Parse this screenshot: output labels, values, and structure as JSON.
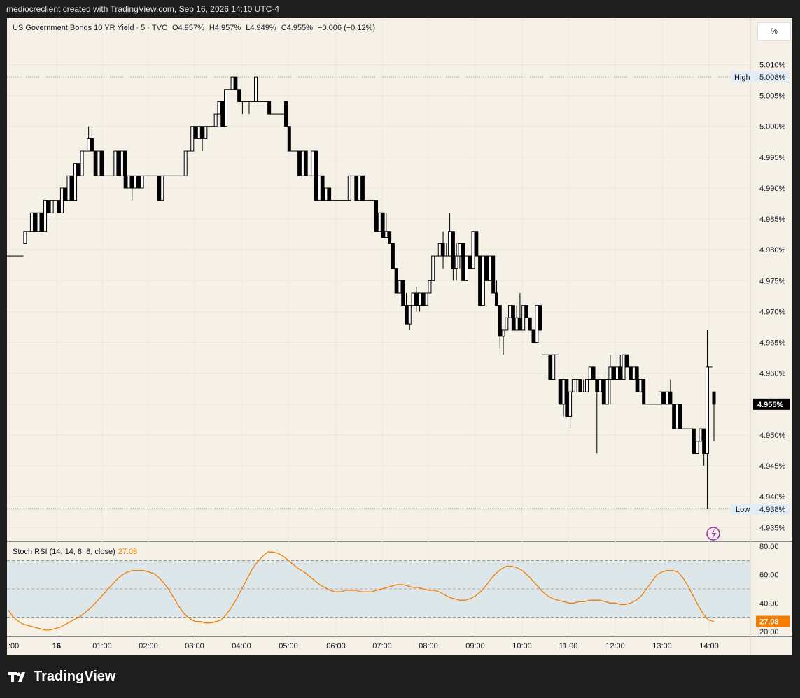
{
  "header": {
    "attribution": "mediocreclient created with TradingView.com, Sep 16, 2026 14:10 UTC-4"
  },
  "legend": {
    "symbol_line": "US Government Bonds 10 YR Yield · 5 · TVC",
    "open": "O4.957%",
    "high": "H4.957%",
    "low": "L4.949%",
    "close": "C4.955%",
    "change": "−0.006 (−0.12%)"
  },
  "scale_unit": "%",
  "price_axis": {
    "ticks": [
      "5.010%",
      "5.005%",
      "5.000%",
      "4.995%",
      "4.990%",
      "4.985%",
      "4.980%",
      "4.975%",
      "4.970%",
      "4.965%",
      "4.960%",
      "4.955%",
      "4.950%",
      "4.945%",
      "4.940%",
      "4.935%"
    ],
    "last_price_label": "4.955%",
    "high_marker": {
      "label": "High",
      "value": "5.008%"
    },
    "low_marker": {
      "label": "Low",
      "value": "4.938%"
    }
  },
  "time_axis": {
    "ticks": [
      ":00",
      "16",
      "01:00",
      "02:00",
      "03:00",
      "04:00",
      "05:00",
      "06:00",
      "07:00",
      "08:00",
      "09:00",
      "10:00",
      "11:00",
      "12:00",
      "13:00",
      "14:00"
    ]
  },
  "rsi": {
    "title": "Stoch RSI (14, 14, 8, 8, close)",
    "value": "27.08",
    "axis_ticks": [
      "80.00",
      "60.00",
      "40.00",
      "20.00"
    ],
    "band_upper": 70,
    "band_lower": 30,
    "band_mid": 50,
    "color": "#f57c00"
  },
  "colors": {
    "background": "#f5f1e6",
    "frame": "#1e1e1e",
    "candle": "#000000",
    "rsi_line": "#f57c00",
    "band_fill": "#dde7ea"
  },
  "brand": "TradingView",
  "chart_data": {
    "type": "candlestick",
    "title": "US Government Bonds 10 YR Yield · 5 · TVC",
    "timeframe": "5",
    "ylim": [
      4.933,
      5.013
    ],
    "session_high": 5.008,
    "session_low": 4.938,
    "last_close": 4.955,
    "x_ticks": [
      ":00",
      "16",
      "01:00",
      "02:00",
      "03:00",
      "04:00",
      "05:00",
      "06:00",
      "07:00",
      "08:00",
      "09:00",
      "10:00",
      "11:00",
      "12:00",
      "13:00",
      "14:00"
    ],
    "candles": [
      [
        4.979,
        4.979,
        4.979,
        4.979
      ],
      [
        4.979,
        4.979,
        4.979,
        4.979
      ],
      [
        4.979,
        4.979,
        4.979,
        4.979
      ],
      [
        4.979,
        4.979,
        4.979,
        4.979
      ],
      [
        4.979,
        4.979,
        4.979,
        4.979
      ],
      [
        4.981,
        4.983,
        4.981,
        4.983
      ],
      [
        4.983,
        4.983,
        4.983,
        4.983
      ],
      [
        4.983,
        4.986,
        4.983,
        4.986
      ],
      [
        4.986,
        4.986,
        4.983,
        4.983
      ],
      [
        4.983,
        4.986,
        4.983,
        4.986
      ],
      [
        4.986,
        4.986,
        4.983,
        4.983
      ],
      [
        4.983,
        4.988,
        4.983,
        4.988
      ],
      [
        4.988,
        4.988,
        4.986,
        4.986
      ],
      [
        4.986,
        4.988,
        4.986,
        4.988
      ],
      [
        4.988,
        4.988,
        4.988,
        4.988
      ],
      [
        4.988,
        4.988,
        4.986,
        4.986
      ],
      [
        4.986,
        4.99,
        4.986,
        4.99
      ],
      [
        4.99,
        4.99,
        4.988,
        4.988
      ],
      [
        4.988,
        4.992,
        4.988,
        4.992
      ],
      [
        4.992,
        4.992,
        4.988,
        4.988
      ],
      [
        4.988,
        4.994,
        4.988,
        4.994
      ],
      [
        4.994,
        4.994,
        4.992,
        4.992
      ],
      [
        4.992,
        4.996,
        4.992,
        4.996
      ],
      [
        4.996,
        4.996,
        4.996,
        4.996
      ],
      [
        4.996,
        5.0,
        4.996,
        4.998
      ],
      [
        4.998,
        5.0,
        4.996,
        4.996
      ],
      [
        4.996,
        4.996,
        4.992,
        4.992
      ],
      [
        4.992,
        4.996,
        4.992,
        4.996
      ],
      [
        4.996,
        4.996,
        4.992,
        4.992
      ],
      [
        4.992,
        4.992,
        4.992,
        4.992
      ],
      [
        4.992,
        4.992,
        4.992,
        4.992
      ],
      [
        4.992,
        4.992,
        4.992,
        4.992
      ],
      [
        4.992,
        4.996,
        4.992,
        4.996
      ],
      [
        4.996,
        4.996,
        4.992,
        4.992
      ],
      [
        4.992,
        4.996,
        4.992,
        4.996
      ],
      [
        4.996,
        4.996,
        4.99,
        4.99
      ],
      [
        4.99,
        4.992,
        4.99,
        4.992
      ],
      [
        4.992,
        4.992,
        4.988,
        4.99
      ],
      [
        4.99,
        4.992,
        4.99,
        4.992
      ],
      [
        4.992,
        4.992,
        4.99,
        4.99
      ],
      [
        4.99,
        4.992,
        4.99,
        4.992
      ],
      [
        4.992,
        4.992,
        4.992,
        4.992
      ],
      [
        4.992,
        4.992,
        4.992,
        4.992
      ],
      [
        4.992,
        4.992,
        4.992,
        4.992
      ],
      [
        4.992,
        4.992,
        4.992,
        4.992
      ],
      [
        4.992,
        4.992,
        4.988,
        4.988
      ],
      [
        4.988,
        4.992,
        4.988,
        4.992
      ],
      [
        4.992,
        4.992,
        4.992,
        4.992
      ],
      [
        4.992,
        4.992,
        4.992,
        4.992
      ],
      [
        4.992,
        4.992,
        4.992,
        4.992
      ],
      [
        4.992,
        4.992,
        4.992,
        4.992
      ],
      [
        4.992,
        4.992,
        4.992,
        4.992
      ],
      [
        4.992,
        4.992,
        4.992,
        4.992
      ],
      [
        4.992,
        4.996,
        4.992,
        4.996
      ],
      [
        4.996,
        4.996,
        4.996,
        4.996
      ],
      [
        4.996,
        5.0,
        4.996,
        5.0
      ],
      [
        5.0,
        5.0,
        4.998,
        4.998
      ],
      [
        4.998,
        5.0,
        4.998,
        5.0
      ],
      [
        5.0,
        5.0,
        4.996,
        4.998
      ],
      [
        4.998,
        5.0,
        4.998,
        5.0
      ],
      [
        5.0,
        5.0,
        5.0,
        5.0
      ],
      [
        5.0,
        5.0,
        5.0,
        5.0
      ],
      [
        5.0,
        5.002,
        5.0,
        5.002
      ],
      [
        5.002,
        5.004,
        5.002,
        5.004
      ],
      [
        5.004,
        5.004,
        5.0,
        5.0
      ],
      [
        5.0,
        5.006,
        5.0,
        5.006
      ],
      [
        5.006,
        5.006,
        5.006,
        5.006
      ],
      [
        5.006,
        5.008,
        5.006,
        5.008
      ],
      [
        5.008,
        5.008,
        5.006,
        5.006
      ],
      [
        5.006,
        5.006,
        5.004,
        5.004
      ],
      [
        5.004,
        5.004,
        5.002,
        5.004
      ],
      [
        5.004,
        5.004,
        5.004,
        5.004
      ],
      [
        5.004,
        5.004,
        5.002,
        5.004
      ],
      [
        5.004,
        5.004,
        5.004,
        5.004
      ],
      [
        5.004,
        5.008,
        5.004,
        5.008
      ],
      [
        5.004,
        5.004,
        5.004,
        5.004
      ],
      [
        5.004,
        5.004,
        5.004,
        5.004
      ],
      [
        5.004,
        5.004,
        5.004,
        5.004
      ],
      [
        5.004,
        5.004,
        5.002,
        5.002
      ],
      [
        5.002,
        5.002,
        5.002,
        5.002
      ],
      [
        5.002,
        5.002,
        5.002,
        5.002
      ],
      [
        5.002,
        5.002,
        5.002,
        5.002
      ],
      [
        5.002,
        5.002,
        5.002,
        5.002
      ],
      [
        5.004,
        5.004,
        5.0,
        5.0
      ],
      [
        5.0,
        5.0,
        4.996,
        4.996
      ],
      [
        4.996,
        4.996,
        4.996,
        4.996
      ],
      [
        4.996,
        4.996,
        4.996,
        4.996
      ],
      [
        4.996,
        4.996,
        4.992,
        4.992
      ],
      [
        4.992,
        4.996,
        4.992,
        4.996
      ],
      [
        4.996,
        4.996,
        4.992,
        4.992
      ],
      [
        4.992,
        4.992,
        4.992,
        4.992
      ],
      [
        4.992,
        4.996,
        4.992,
        4.996
      ],
      [
        4.996,
        4.996,
        4.988,
        4.988
      ],
      [
        4.988,
        4.992,
        4.988,
        4.992
      ],
      [
        4.992,
        4.992,
        4.988,
        4.988
      ],
      [
        4.988,
        4.99,
        4.988,
        4.99
      ],
      [
        4.99,
        4.99,
        4.988,
        4.988
      ],
      [
        4.988,
        4.988,
        4.988,
        4.988
      ],
      [
        4.988,
        4.988,
        4.988,
        4.988
      ],
      [
        4.988,
        4.988,
        4.988,
        4.988
      ],
      [
        4.988,
        4.988,
        4.988,
        4.988
      ],
      [
        4.988,
        4.988,
        4.988,
        4.988
      ],
      [
        4.988,
        4.992,
        4.988,
        4.992
      ],
      [
        4.992,
        4.992,
        4.992,
        4.992
      ],
      [
        4.992,
        4.992,
        4.988,
        4.988
      ],
      [
        4.988,
        4.992,
        4.988,
        4.992
      ],
      [
        4.992,
        4.992,
        4.988,
        4.988
      ],
      [
        4.988,
        4.988,
        4.988,
        4.988
      ],
      [
        4.988,
        4.988,
        4.988,
        4.988
      ],
      [
        4.988,
        4.988,
        4.988,
        4.988
      ],
      [
        4.988,
        4.988,
        4.983,
        4.983
      ],
      [
        4.983,
        4.986,
        4.983,
        4.986
      ],
      [
        4.986,
        4.986,
        4.982,
        4.982
      ],
      [
        4.982,
        4.986,
        4.982,
        4.983
      ],
      [
        4.983,
        4.983,
        4.981,
        4.981
      ],
      [
        4.981,
        4.981,
        4.977,
        4.977
      ],
      [
        4.977,
        4.977,
        4.973,
        4.973
      ],
      [
        4.973,
        4.975,
        4.973,
        4.975
      ],
      [
        4.975,
        4.975,
        4.971,
        4.971
      ],
      [
        4.971,
        4.973,
        4.968,
        4.968
      ],
      [
        4.968,
        4.971,
        4.967,
        4.971
      ],
      [
        4.971,
        4.973,
        4.971,
        4.973
      ],
      [
        4.973,
        4.974,
        4.97,
        4.971
      ],
      [
        4.971,
        4.973,
        4.97,
        4.973
      ],
      [
        4.973,
        4.973,
        4.971,
        4.971
      ],
      [
        4.971,
        4.973,
        4.971,
        4.973
      ],
      [
        4.973,
        4.975,
        4.973,
        4.975
      ],
      [
        4.975,
        4.979,
        4.975,
        4.979
      ],
      [
        4.979,
        4.979,
        4.979,
        4.979
      ],
      [
        4.979,
        4.981,
        4.979,
        4.981
      ],
      [
        4.981,
        4.983,
        4.977,
        4.979
      ],
      [
        4.979,
        4.981,
        4.979,
        4.979
      ],
      [
        4.979,
        4.986,
        4.979,
        4.983
      ],
      [
        4.983,
        4.983,
        4.975,
        4.977
      ],
      [
        4.977,
        4.981,
        4.975,
        4.979
      ],
      [
        4.979,
        4.981,
        4.977,
        4.981
      ],
      [
        4.981,
        4.981,
        4.975,
        4.975
      ],
      [
        4.975,
        4.979,
        4.975,
        4.979
      ],
      [
        4.979,
        4.979,
        4.977,
        4.977
      ],
      [
        4.977,
        4.983,
        4.977,
        4.983
      ],
      [
        4.983,
        4.983,
        4.979,
        4.979
      ],
      [
        4.979,
        4.979,
        4.971,
        4.971
      ],
      [
        4.971,
        4.979,
        4.971,
        4.979
      ],
      [
        4.979,
        4.979,
        4.975,
        4.975
      ],
      [
        4.975,
        4.979,
        4.975,
        4.979
      ],
      [
        4.979,
        4.979,
        4.973,
        4.973
      ],
      [
        4.973,
        4.975,
        4.971,
        4.971
      ],
      [
        4.971,
        4.971,
        4.964,
        4.966
      ],
      [
        4.966,
        4.967,
        4.963,
        4.967
      ],
      [
        4.967,
        4.969,
        4.967,
        4.969
      ],
      [
        4.969,
        4.971,
        4.969,
        4.971
      ],
      [
        4.971,
        4.971,
        4.967,
        4.967
      ],
      [
        4.967,
        4.971,
        4.967,
        4.969
      ],
      [
        4.969,
        4.973,
        4.967,
        4.967
      ],
      [
        4.967,
        4.971,
        4.967,
        4.971
      ],
      [
        4.971,
        4.971,
        4.969,
        4.969
      ],
      [
        4.969,
        4.969,
        4.967,
        4.967
      ],
      [
        4.967,
        4.967,
        4.965,
        4.965
      ],
      [
        4.965,
        4.971,
        4.965,
        4.971
      ],
      [
        4.971,
        4.971,
        4.967,
        4.967
      ],
      [
        4.963,
        4.963,
        4.963,
        4.963
      ],
      [
        4.963,
        4.963,
        4.963,
        4.963
      ],
      [
        4.963,
        4.963,
        4.959,
        4.959
      ],
      [
        4.959,
        4.963,
        4.959,
        4.963
      ],
      [
        4.963,
        4.963,
        4.963,
        4.963
      ],
      [
        4.959,
        4.959,
        4.955,
        4.955
      ],
      [
        4.955,
        4.959,
        4.953,
        4.959
      ],
      [
        4.959,
        4.959,
        4.953,
        4.953
      ],
      [
        4.953,
        4.957,
        4.951,
        4.957
      ],
      [
        4.957,
        4.959,
        4.957,
        4.959
      ],
      [
        4.959,
        4.959,
        4.957,
        4.959
      ],
      [
        4.959,
        4.959,
        4.957,
        4.957
      ],
      [
        4.957,
        4.959,
        4.957,
        4.957
      ],
      [
        4.957,
        4.959,
        4.957,
        4.959
      ],
      [
        4.959,
        4.961,
        4.959,
        4.961
      ],
      [
        4.961,
        4.961,
        4.959,
        4.959
      ],
      [
        4.959,
        4.959,
        4.947,
        4.957
      ],
      [
        4.957,
        4.959,
        4.957,
        4.959
      ],
      [
        4.959,
        4.959,
        4.955,
        4.955
      ],
      [
        4.955,
        4.959,
        4.955,
        4.959
      ],
      [
        4.959,
        4.963,
        4.955,
        4.961
      ],
      [
        4.961,
        4.961,
        4.959,
        4.959
      ],
      [
        4.959,
        4.963,
        4.959,
        4.961
      ],
      [
        4.961,
        4.963,
        4.959,
        4.959
      ],
      [
        4.959,
        4.963,
        4.959,
        4.963
      ],
      [
        4.963,
        4.963,
        4.961,
        4.961
      ],
      [
        4.961,
        4.961,
        4.959,
        4.959
      ],
      [
        4.959,
        4.961,
        4.959,
        4.961
      ],
      [
        4.961,
        4.961,
        4.957,
        4.957
      ],
      [
        4.957,
        4.959,
        4.957,
        4.959
      ],
      [
        4.959,
        4.959,
        4.955,
        4.955
      ],
      [
        4.955,
        4.955,
        4.955,
        4.955
      ],
      [
        4.955,
        4.955,
        4.955,
        4.955
      ],
      [
        4.955,
        4.955,
        4.955,
        4.955
      ],
      [
        4.955,
        4.955,
        4.955,
        4.955
      ],
      [
        4.955,
        4.957,
        4.955,
        4.957
      ],
      [
        4.957,
        4.957,
        4.955,
        4.955
      ],
      [
        4.955,
        4.957,
        4.955,
        4.957
      ],
      [
        4.957,
        4.959,
        4.955,
        4.955
      ],
      [
        4.955,
        4.955,
        4.951,
        4.951
      ],
      [
        4.951,
        4.955,
        4.951,
        4.955
      ],
      [
        4.955,
        4.955,
        4.951,
        4.951
      ],
      [
        4.951,
        4.951,
        4.951,
        4.951
      ],
      [
        4.951,
        4.951,
        4.951,
        4.951
      ],
      [
        4.951,
        4.951,
        4.951,
        4.951
      ],
      [
        4.951,
        4.951,
        4.947,
        4.947
      ],
      [
        4.947,
        4.949,
        4.947,
        4.949
      ],
      [
        4.949,
        4.951,
        4.949,
        4.951
      ],
      [
        4.951,
        4.951,
        4.945,
        4.947
      ],
      [
        4.947,
        4.967,
        4.938,
        4.961
      ],
      [
        4.961,
        4.961,
        4.961,
        4.961
      ],
      [
        4.957,
        4.957,
        4.949,
        4.955
      ]
    ],
    "stoch_rsi": {
      "name": "Stoch RSI (14, 14, 8, 8, close)",
      "last": 27.08,
      "ylim": [
        17,
        83
      ],
      "ticks": [
        80,
        60,
        40,
        20
      ],
      "values": [
        35,
        30,
        27,
        25,
        24,
        23,
        22,
        21,
        21,
        22,
        23,
        25,
        27,
        29,
        31,
        34,
        37,
        41,
        45,
        49,
        53,
        57,
        60,
        62,
        63,
        63,
        63,
        62,
        61,
        58,
        54,
        49,
        43,
        37,
        32,
        29,
        27,
        27,
        26,
        26,
        27,
        28,
        32,
        37,
        43,
        50,
        57,
        64,
        69,
        73,
        76,
        76,
        75,
        73,
        70,
        67,
        64,
        62,
        59,
        56,
        53,
        51,
        49,
        48,
        48,
        49,
        49,
        49,
        48,
        48,
        48,
        49,
        50,
        51,
        52,
        53,
        53,
        52,
        51,
        51,
        50,
        49,
        49,
        48,
        46,
        44,
        43,
        42,
        42,
        43,
        45,
        48,
        52,
        57,
        61,
        64,
        66,
        66,
        65,
        63,
        60,
        56,
        52,
        48,
        45,
        43,
        42,
        41,
        40,
        40,
        41,
        41,
        42,
        42,
        42,
        41,
        40,
        40,
        39,
        39,
        40,
        42,
        45,
        50,
        55,
        60,
        62,
        63,
        63,
        62,
        58,
        52,
        45,
        38,
        32,
        28,
        27
      ]
    }
  }
}
